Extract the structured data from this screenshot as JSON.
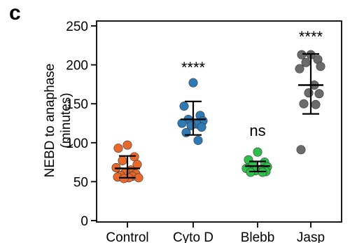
{
  "panel_label": "c",
  "chart_data": {
    "type": "scatter",
    "ylabel_line1": "NEBD to anaphase",
    "ylabel_line2": "(minutes)",
    "ylim": [
      0,
      250
    ],
    "yticks": [
      0,
      50,
      100,
      150,
      200,
      250
    ],
    "categories": [
      "Control",
      "Cyto D",
      "Blebb",
      "Jasp"
    ],
    "colors": [
      "#e8692c",
      "#2f79b5",
      "#2fbe4b",
      "#6b6b6b"
    ],
    "significance": [
      "",
      "****",
      "ns",
      "****"
    ],
    "series": [
      {
        "values": [
          97,
          93,
          82,
          77,
          72,
          68,
          65,
          62,
          60,
          58,
          57,
          56,
          55,
          55,
          54
        ],
        "mean": 67,
        "sd_low": 55,
        "sd_high": 83
      },
      {
        "values": [
          177,
          147,
          135,
          130,
          128,
          125,
          124,
          122,
          120,
          113,
          103
        ],
        "mean": 130,
        "sd_low": 110,
        "sd_high": 153
      },
      {
        "values": [
          88,
          78,
          75,
          71,
          69,
          67,
          66,
          64,
          63,
          62,
          62
        ],
        "mean": 70,
        "sd_low": 63,
        "sd_high": 76
      },
      {
        "values": [
          213,
          213,
          207,
          203,
          198,
          195,
          174,
          164,
          163,
          150,
          149,
          91
        ],
        "mean": 174,
        "sd_low": 137,
        "sd_high": 214
      }
    ]
  }
}
